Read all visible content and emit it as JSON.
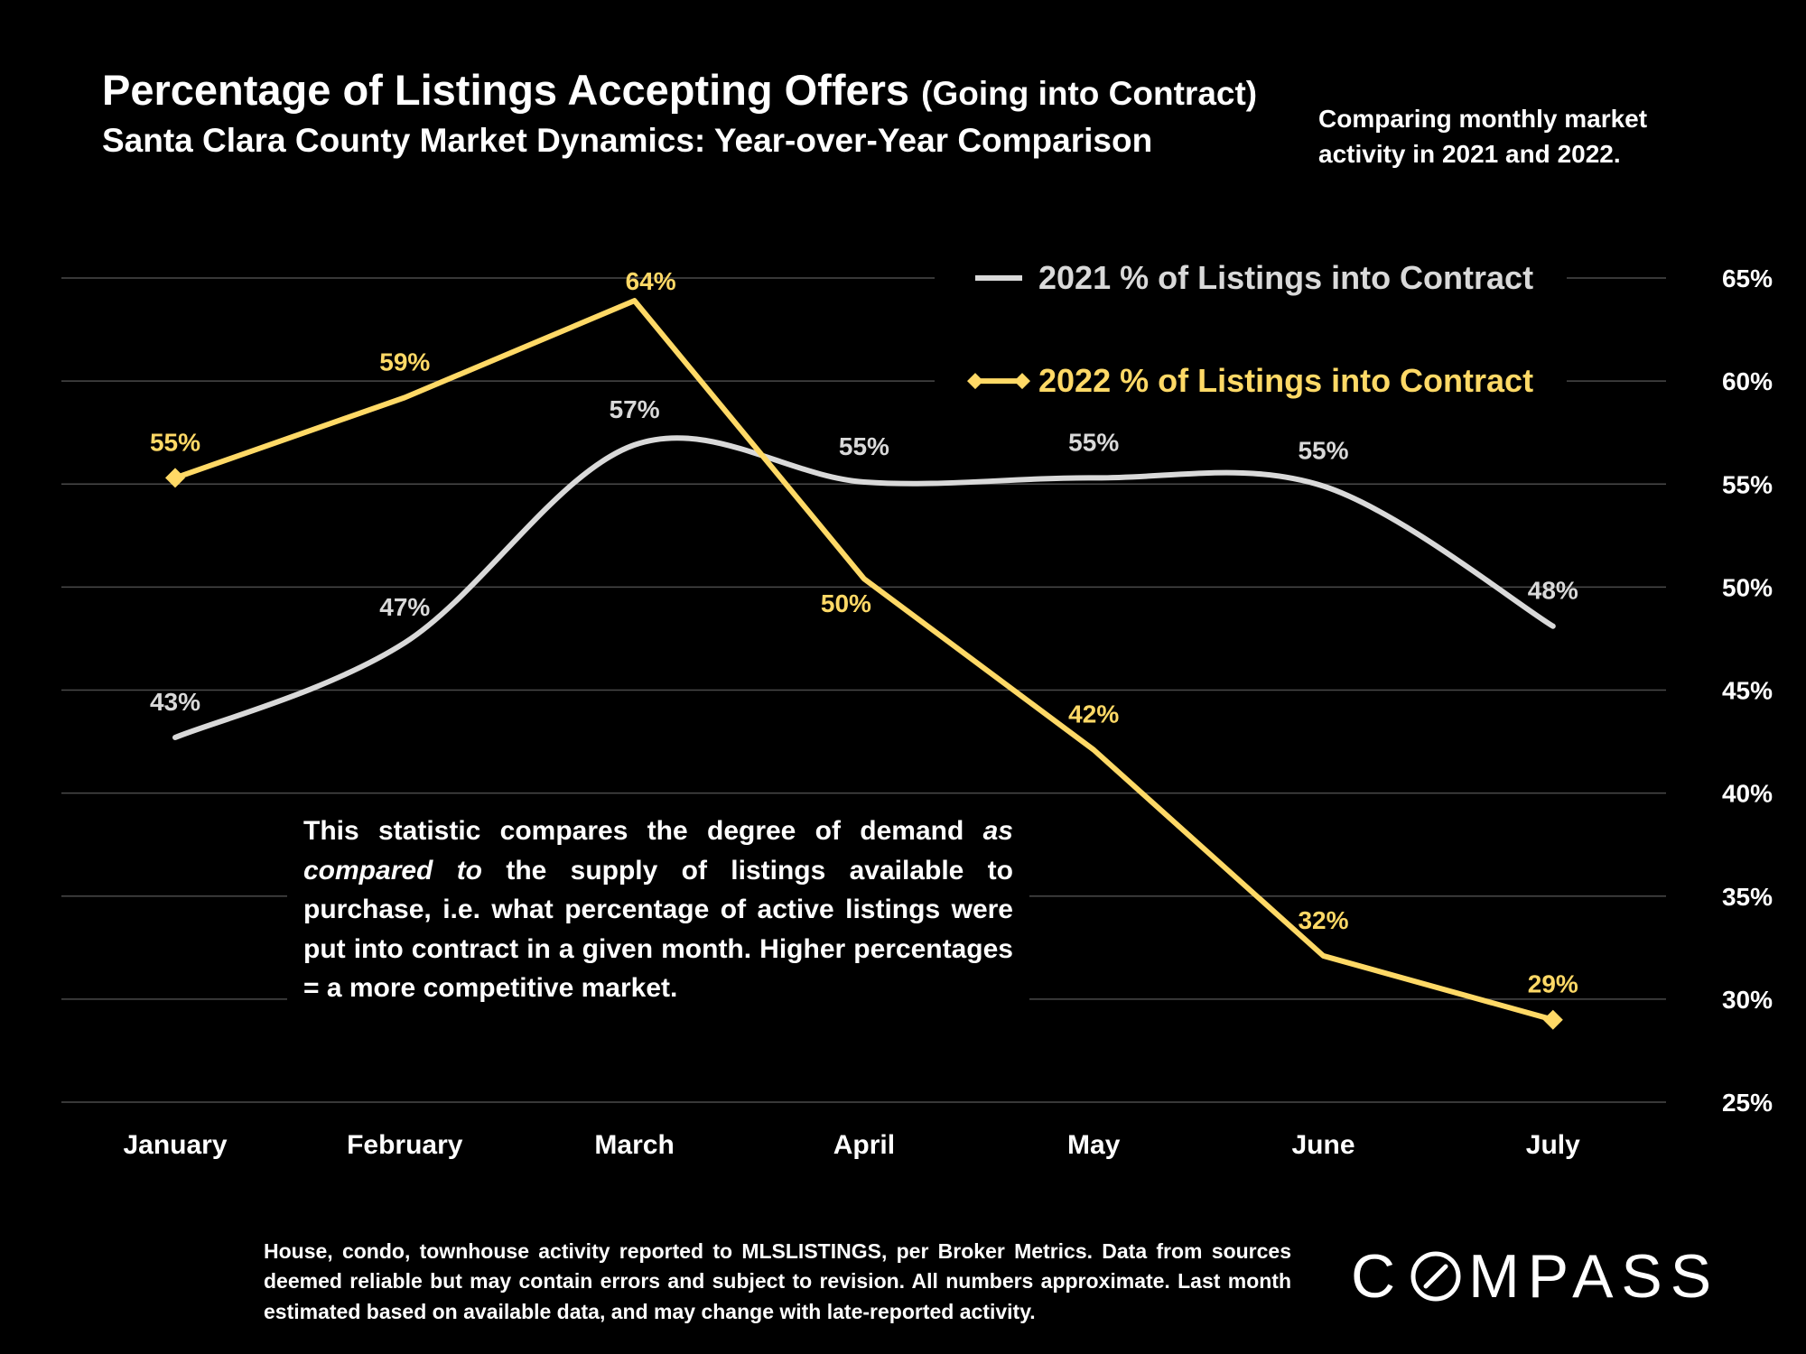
{
  "header": {
    "title": "Percentage of Listings Accepting Offers",
    "title_paren": "(Going into Contract)",
    "subtitle": "Santa Clara County Market Dynamics: Year-over-Year Comparison",
    "note": "Comparing monthly market activity in 2021 and 2022."
  },
  "description": {
    "part1": "This statistic compares the degree of demand ",
    "emphasis": "as compared to",
    "part2": " the supply of listings available to purchase, i.e. what percentage of active listings were put into contract in a given month. Higher percentages = a more competitive market."
  },
  "footer": "House, condo, townhouse activity reported to MLSLISTINGS, per Broker Metrics. Data from sources deemed reliable but may contain errors and subject to revision. All numbers approximate. Last month estimated based on available data, and may change with late-reported activity.",
  "logo": {
    "before": "C",
    "after": "MPASS",
    "mark": "slashed-o-logo-icon"
  },
  "colors": {
    "background": "#000000",
    "series2021": "#d9d9d9",
    "series2022": "#ffd966",
    "grid": "#4a4a4a",
    "text": "#ffffff"
  },
  "chart_data": {
    "type": "line",
    "categories": [
      "January",
      "February",
      "March",
      "April",
      "May",
      "June",
      "July"
    ],
    "ylim": [
      25,
      65
    ],
    "yticks": [
      25,
      30,
      35,
      40,
      45,
      50,
      55,
      60,
      65
    ],
    "ytick_labels": [
      "25%",
      "30%",
      "35%",
      "40%",
      "45%",
      "50%",
      "55%",
      "60%",
      "65%"
    ],
    "y_axis_side": "right",
    "grid": true,
    "legend": "top-right",
    "series": [
      {
        "name": "2021 % of Listings into Contract",
        "values": [
          42.7,
          47.3,
          56.9,
          55.1,
          55.3,
          54.9,
          48.1
        ],
        "labels": [
          "43%",
          "47%",
          "57%",
          "55%",
          "55%",
          "55%",
          "48%"
        ],
        "color": "#d9d9d9",
        "marker": "none",
        "smooth": true
      },
      {
        "name": "2022 % of Listings into Contract",
        "values": [
          55.3,
          59.2,
          63.9,
          50.4,
          42.1,
          32.1,
          29.0
        ],
        "labels": [
          "55%",
          "59%",
          "64%",
          "50%",
          "42%",
          "32%",
          "29%"
        ],
        "color": "#ffd966",
        "marker": "diamond",
        "smooth": false
      }
    ]
  }
}
